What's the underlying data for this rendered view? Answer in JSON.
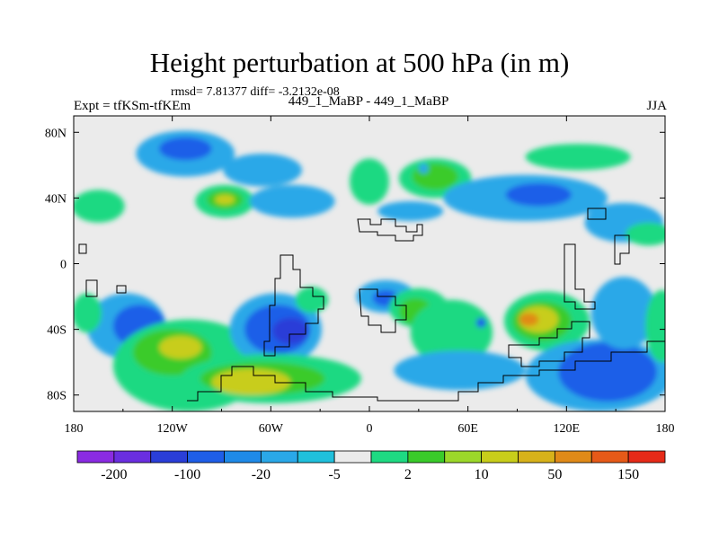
{
  "figure": {
    "title": "Height perturbation at 500 hPa (in m)",
    "stats": "rmsd= 7.81377 diff= -3.2132e-08",
    "left_label": "Expt = tfKSm-tfKEm",
    "center_label": "449_1_MaBP - 449_1_MaBP",
    "right_label": "JJA"
  },
  "chart_data": {
    "type": "heatmap",
    "title": "Height perturbation at 500 hPa (in m)",
    "xlim": [
      -180,
      180
    ],
    "ylim": [
      -90,
      90
    ],
    "x_ticks": [
      {
        "value": -180,
        "label": "180"
      },
      {
        "value": -120,
        "label": "120W"
      },
      {
        "value": -60,
        "label": "60W"
      },
      {
        "value": 0,
        "label": "0"
      },
      {
        "value": 60,
        "label": "60E"
      },
      {
        "value": 120,
        "label": "120E"
      },
      {
        "value": 180,
        "label": "180"
      }
    ],
    "y_ticks": [
      {
        "value": 80,
        "label": "80N"
      },
      {
        "value": 40,
        "label": "40N"
      },
      {
        "value": 0,
        "label": "0"
      },
      {
        "value": -40,
        "label": "40S"
      },
      {
        "value": -80,
        "label": "80S"
      }
    ],
    "colorbar": {
      "colors": [
        "#8a2be2",
        "#6a2ee0",
        "#2a3ed8",
        "#1e5ee8",
        "#1e8ae8",
        "#2aa8e8",
        "#20c0dc",
        "#ebebeb",
        "#1ed982",
        "#3acb2a",
        "#9cd82a",
        "#c8cd1a",
        "#d7b21a",
        "#e08a18",
        "#e65a18",
        "#e62a18"
      ],
      "labels": [
        "-200",
        "-100",
        "-20",
        "-5",
        "2",
        "10",
        "50",
        "150"
      ]
    },
    "regions": [
      {
        "lon": -112,
        "lat": 67,
        "rx": 30,
        "ry": 14,
        "level": -5
      },
      {
        "lon": -112,
        "lat": 70,
        "rx": 16,
        "ry": 7,
        "level": -20
      },
      {
        "lon": -65,
        "lat": 57,
        "rx": 24,
        "ry": 10,
        "level": -5
      },
      {
        "lon": -165,
        "lat": 35,
        "rx": 16,
        "ry": 10,
        "level": 2
      },
      {
        "lon": -88,
        "lat": 38,
        "rx": 18,
        "ry": 10,
        "level": 2
      },
      {
        "lon": -88,
        "lat": 39,
        "rx": 11,
        "ry": 6,
        "level": 10
      },
      {
        "lon": -88,
        "lat": 39,
        "rx": 6,
        "ry": 3,
        "level": 50
      },
      {
        "lon": -47,
        "lat": 38,
        "rx": 26,
        "ry": 10,
        "level": -5
      },
      {
        "lon": 0,
        "lat": 50,
        "rx": 12,
        "ry": 14,
        "level": 2
      },
      {
        "lon": 40,
        "lat": 52,
        "rx": 22,
        "ry": 12,
        "level": 2
      },
      {
        "lon": 40,
        "lat": 53,
        "rx": 14,
        "ry": 8,
        "level": 10
      },
      {
        "lon": 33,
        "lat": 58,
        "rx": 3,
        "ry": 3,
        "level": -5
      },
      {
        "lon": 127,
        "lat": 65,
        "rx": 32,
        "ry": 8,
        "level": 2
      },
      {
        "lon": 95,
        "lat": 40,
        "rx": 50,
        "ry": 14,
        "level": -5
      },
      {
        "lon": 103,
        "lat": 42,
        "rx": 20,
        "ry": 7,
        "level": -20
      },
      {
        "lon": 25,
        "lat": 32,
        "rx": 20,
        "ry": 6,
        "level": -5
      },
      {
        "lon": 155,
        "lat": 25,
        "rx": 24,
        "ry": 12,
        "level": -5
      },
      {
        "lon": 170,
        "lat": 18,
        "rx": 14,
        "ry": 7,
        "level": 2
      },
      {
        "lon": -148,
        "lat": -38,
        "rx": 24,
        "ry": 20,
        "level": -5
      },
      {
        "lon": -140,
        "lat": -38,
        "rx": 16,
        "ry": 13,
        "level": -20
      },
      {
        "lon": -172,
        "lat": -30,
        "rx": 9,
        "ry": 12,
        "level": 2
      },
      {
        "lon": -110,
        "lat": -62,
        "rx": 46,
        "ry": 28,
        "level": 2
      },
      {
        "lon": -120,
        "lat": -54,
        "rx": 24,
        "ry": 14,
        "level": 10
      },
      {
        "lon": -115,
        "lat": -51,
        "rx": 13,
        "ry": 7,
        "level": 50
      },
      {
        "lon": -57,
        "lat": -40,
        "rx": 28,
        "ry": 22,
        "level": -5
      },
      {
        "lon": -56,
        "lat": -40,
        "rx": 20,
        "ry": 15,
        "level": -20
      },
      {
        "lon": -48,
        "lat": -41,
        "rx": 11,
        "ry": 8,
        "level": -100
      },
      {
        "lon": -60,
        "lat": -70,
        "rx": 55,
        "ry": 15,
        "level": 2
      },
      {
        "lon": -65,
        "lat": -70,
        "rx": 38,
        "ry": 10,
        "level": 10
      },
      {
        "lon": -72,
        "lat": -72,
        "rx": 24,
        "ry": 8,
        "level": 50
      },
      {
        "lon": -35,
        "lat": -22,
        "rx": 10,
        "ry": 8,
        "level": 2
      },
      {
        "lon": 10,
        "lat": -20,
        "rx": 18,
        "ry": 10,
        "level": -5
      },
      {
        "lon": 10,
        "lat": -21,
        "rx": 8,
        "ry": 5,
        "level": -20
      },
      {
        "lon": 30,
        "lat": -27,
        "rx": 18,
        "ry": 12,
        "level": 2
      },
      {
        "lon": 28,
        "lat": -29,
        "rx": 10,
        "ry": 8,
        "level": 10
      },
      {
        "lon": 50,
        "lat": -42,
        "rx": 25,
        "ry": 20,
        "level": 2
      },
      {
        "lon": 55,
        "lat": -65,
        "rx": 40,
        "ry": 12,
        "level": -5
      },
      {
        "lon": 108,
        "lat": -35,
        "rx": 26,
        "ry": 18,
        "level": 2
      },
      {
        "lon": 105,
        "lat": -35,
        "rx": 18,
        "ry": 12,
        "level": 10
      },
      {
        "lon": 103,
        "lat": -34,
        "rx": 12,
        "ry": 8,
        "level": 50
      },
      {
        "lon": 97,
        "lat": -34,
        "rx": 6,
        "ry": 4,
        "level": 150
      },
      {
        "lon": 140,
        "lat": -68,
        "rx": 45,
        "ry": 22,
        "level": -5
      },
      {
        "lon": 145,
        "lat": -66,
        "rx": 30,
        "ry": 18,
        "level": -20
      },
      {
        "lon": 155,
        "lat": -30,
        "rx": 20,
        "ry": 22,
        "level": -5
      },
      {
        "lon": 178,
        "lat": -38,
        "rx": 10,
        "ry": 22,
        "level": 2
      },
      {
        "lon": 68,
        "lat": -36,
        "rx": 3,
        "ry": 3,
        "level": -20
      }
    ]
  }
}
